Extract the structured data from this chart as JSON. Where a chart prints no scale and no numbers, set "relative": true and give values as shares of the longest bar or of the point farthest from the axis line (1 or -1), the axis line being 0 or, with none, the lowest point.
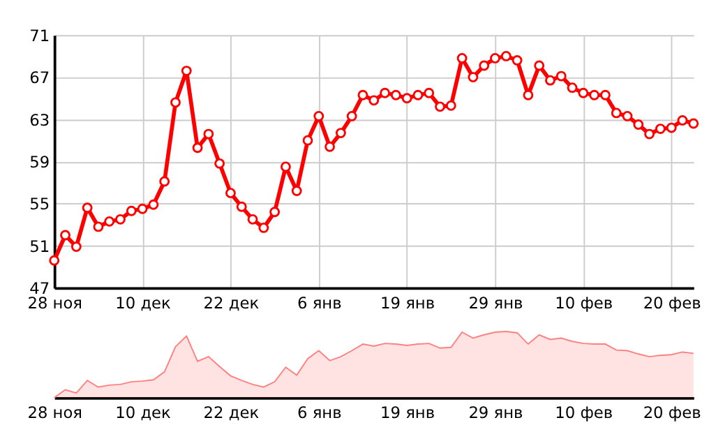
{
  "chart_data": [
    {
      "type": "line",
      "categories": [
        "28 ноя",
        null,
        null,
        null,
        null,
        null,
        null,
        null,
        "10 дек",
        null,
        null,
        null,
        null,
        null,
        null,
        null,
        "22 дек",
        null,
        null,
        null,
        null,
        null,
        null,
        null,
        "6 янв",
        null,
        null,
        null,
        null,
        null,
        null,
        null,
        "19 янв",
        null,
        null,
        null,
        null,
        null,
        null,
        null,
        "29 янв",
        null,
        null,
        null,
        null,
        null,
        null,
        null,
        "10 фев",
        null,
        null,
        null,
        null,
        null,
        null,
        null,
        "20 фев",
        null,
        null
      ],
      "series": [
        {
          "color": "#ff0000",
          "values": [
            49.6,
            52.0,
            50.9,
            54.6,
            52.8,
            53.3,
            53.5,
            54.3,
            54.5,
            54.9,
            57.1,
            64.6,
            67.6,
            60.3,
            61.6,
            58.8,
            56.0,
            54.7,
            53.5,
            52.7,
            54.2,
            58.5,
            56.2,
            61.0,
            63.3,
            60.4,
            61.7,
            63.3,
            65.3,
            64.8,
            65.5,
            65.3,
            65.0,
            65.3,
            65.5,
            64.2,
            64.3,
            68.8,
            67.0,
            68.1,
            68.8,
            69.0,
            68.6,
            65.3,
            68.1,
            66.7,
            67.1,
            66.0,
            65.5,
            65.3,
            65.3,
            63.6,
            63.3,
            62.5,
            61.6,
            62.1,
            62.2,
            62.9,
            62.6
          ]
        }
      ],
      "ylim": [
        47,
        71
      ],
      "yticks": [
        47,
        51,
        55,
        59,
        63,
        67,
        71
      ],
      "grid": true,
      "marker": "circle",
      "line_style": "solid"
    },
    {
      "type": "area",
      "relative": true,
      "categories": [
        "28 ноя",
        null,
        null,
        null,
        null,
        null,
        null,
        null,
        "10 дек",
        null,
        null,
        null,
        null,
        null,
        null,
        null,
        "22 дек",
        null,
        null,
        null,
        null,
        null,
        null,
        null,
        "6 янв",
        null,
        null,
        null,
        null,
        null,
        null,
        null,
        "19 янв",
        null,
        null,
        null,
        null,
        null,
        null,
        null,
        "29 янв",
        null,
        null,
        null,
        null,
        null,
        null,
        null,
        "10 фев",
        null,
        null,
        null,
        null,
        null,
        null,
        null,
        "20 фев",
        null,
        null
      ],
      "series": [
        {
          "color": "#ff8080",
          "values": [
            0,
            0.12,
            0.07,
            0.26,
            0.16,
            0.19,
            0.2,
            0.24,
            0.25,
            0.27,
            0.39,
            0.77,
            0.93,
            0.55,
            0.62,
            0.47,
            0.33,
            0.26,
            0.2,
            0.16,
            0.24,
            0.46,
            0.34,
            0.59,
            0.71,
            0.56,
            0.62,
            0.71,
            0.81,
            0.78,
            0.82,
            0.81,
            0.79,
            0.81,
            0.82,
            0.75,
            0.76,
            0.99,
            0.9,
            0.95,
            0.99,
            1,
            0.98,
            0.81,
            0.95,
            0.88,
            0.9,
            0.85,
            0.82,
            0.81,
            0.81,
            0.72,
            0.71,
            0.66,
            0.62,
            0.64,
            0.65,
            0.69,
            0.67
          ]
        }
      ]
    }
  ]
}
